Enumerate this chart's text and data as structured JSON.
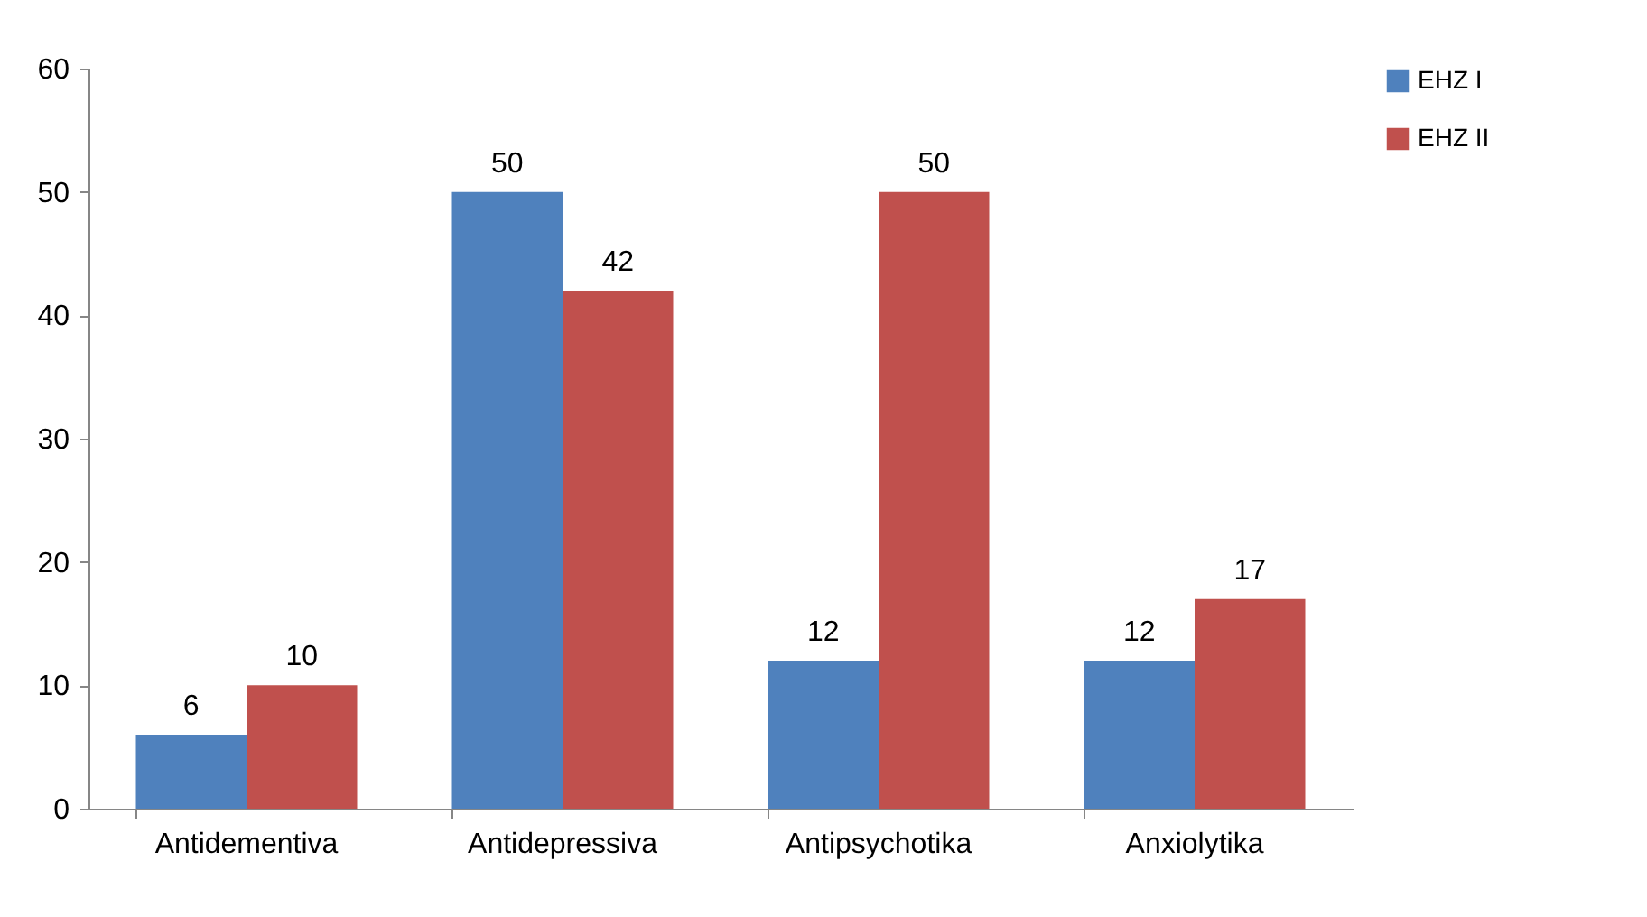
{
  "chart_data": {
    "type": "bar",
    "categories": [
      "Antidementiva",
      "Antidepressiva",
      "Antipsychotika",
      "Anxiolytika"
    ],
    "series": [
      {
        "name": "EHZ I",
        "color": "#4f81bd",
        "values": [
          6,
          50,
          12,
          12
        ]
      },
      {
        "name": "EHZ II",
        "color": "#c0504d",
        "values": [
          10,
          42,
          50,
          17
        ]
      }
    ],
    "ylim": [
      0,
      60
    ],
    "yticks": [
      0,
      10,
      20,
      30,
      40,
      50,
      60
    ],
    "grid": false,
    "legend": "right",
    "data_labels": true
  }
}
